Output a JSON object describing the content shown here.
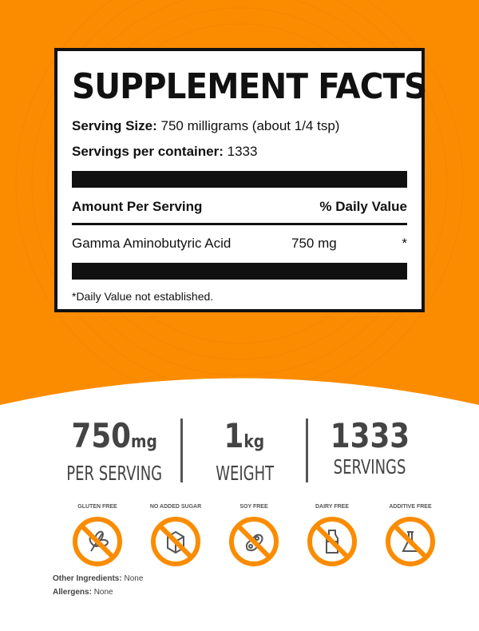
{
  "colors": {
    "orange": "#fb8c00",
    "dark": "#444444"
  },
  "facts": {
    "title": "SUPPLEMENT FACTS",
    "serving_size_label": "Serving Size:",
    "serving_size_value": "750 milligrams (about 1/4 tsp)",
    "servings_label": "Servings per container:",
    "servings_value": "1333",
    "amount_header": "Amount Per Serving",
    "dv_header": "% Daily Value",
    "items": [
      {
        "name": "Gamma Aminobutyric Acid",
        "amount": "750 mg",
        "dv": "*"
      }
    ],
    "footnote": "*Daily Value not established."
  },
  "stats": [
    {
      "value": "750",
      "unit": "mg",
      "label": "PER SERVING"
    },
    {
      "value": "1",
      "unit": "kg",
      "label": "WEIGHT"
    },
    {
      "value": "1333",
      "unit": "",
      "label": "SERVINGS"
    }
  ],
  "badges": [
    {
      "label": "GLUTEN FREE",
      "icon": "wheat-icon"
    },
    {
      "label": "NO ADDED SUGAR",
      "icon": "sugar-cube-icon"
    },
    {
      "label": "SOY FREE",
      "icon": "soybean-icon"
    },
    {
      "label": "DAIRY FREE",
      "icon": "milk-bottle-icon"
    },
    {
      "label": "ADDITIVE FREE",
      "icon": "flask-icon"
    }
  ],
  "footer": {
    "ingredients_label": "Other Ingredients:",
    "ingredients_value": "None",
    "allergens_label": "Allergens:",
    "allergens_value": "None"
  }
}
